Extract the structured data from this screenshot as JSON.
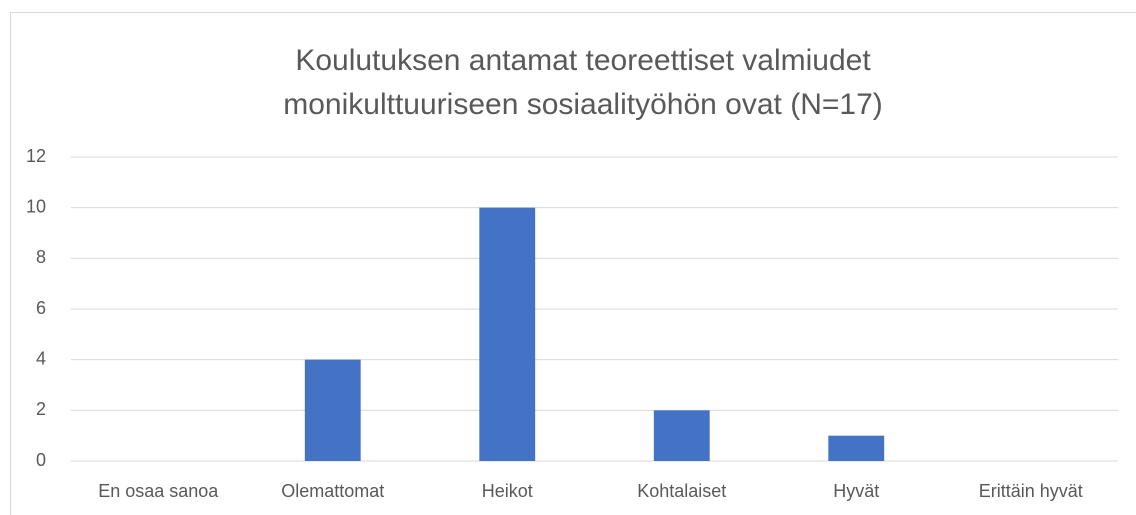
{
  "chart_data": {
    "type": "bar",
    "title": [
      "Koulutuksen antamat teoreettiset valmiudet",
      "monikulttuuriseen sosiaalityöhön ovat (N=17)"
    ],
    "categories": [
      "En osaa sanoa",
      "Olemattomat",
      "Heikot",
      "Kohtalaiset",
      "Hyvät",
      "Erittäin hyvät"
    ],
    "values": [
      0,
      4,
      10,
      2,
      1,
      0
    ],
    "color": "#4472c4",
    "ylim": [
      0,
      12
    ],
    "yticks": [
      0,
      2,
      4,
      6,
      8,
      10,
      12
    ],
    "grid": true
  }
}
